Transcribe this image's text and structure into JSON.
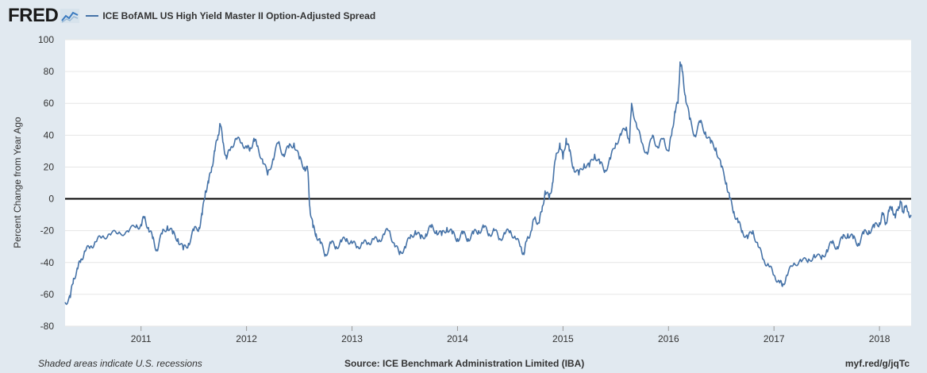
{
  "header": {
    "logo_text": "FRED",
    "logo_icon": "fred-chart-icon",
    "series_title": "ICE BofAML US High Yield Master II Option-Adjusted Spread"
  },
  "footer": {
    "recession_note": "Shaded areas indicate U.S. recessions",
    "source": "Source: ICE Benchmark Administration Limited (IBA)",
    "short_url": "myf.red/g/jqTc"
  },
  "colors": {
    "series": "#4572a7",
    "background": "#e1e9f0",
    "plot": "#ffffff",
    "zero_line": "#000000"
  },
  "chart_data": {
    "type": "line",
    "title": "",
    "xlabel": "",
    "ylabel": "Percent Change from Year Ago",
    "xlim": [
      2010.28,
      2018.3
    ],
    "ylim": [
      -80,
      100
    ],
    "yticks": [
      -80,
      -60,
      -40,
      -20,
      0,
      20,
      40,
      60,
      80,
      100
    ],
    "xticks": [
      2011,
      2012,
      2013,
      2014,
      2015,
      2016,
      2017,
      2018
    ],
    "grid": true,
    "legend": "top-left",
    "reference_line": 0,
    "series": [
      {
        "name": "ICE BofAML US High Yield Master II Option-Adjusted Spread",
        "points": [
          [
            2010.28,
            -65
          ],
          [
            2010.33,
            -62
          ],
          [
            2010.36,
            -50
          ],
          [
            2010.4,
            -44
          ],
          [
            2010.43,
            -38
          ],
          [
            2010.47,
            -33
          ],
          [
            2010.52,
            -30
          ],
          [
            2010.57,
            -27
          ],
          [
            2010.63,
            -24
          ],
          [
            2010.7,
            -22
          ],
          [
            2010.78,
            -22
          ],
          [
            2010.87,
            -20
          ],
          [
            2010.95,
            -18
          ],
          [
            2011.0,
            -16
          ],
          [
            2011.03,
            -12
          ],
          [
            2011.07,
            -18
          ],
          [
            2011.11,
            -25
          ],
          [
            2011.15,
            -32
          ],
          [
            2011.2,
            -22
          ],
          [
            2011.25,
            -17
          ],
          [
            2011.3,
            -22
          ],
          [
            2011.35,
            -25
          ],
          [
            2011.4,
            -32
          ],
          [
            2011.45,
            -28
          ],
          [
            2011.5,
            -20
          ],
          [
            2011.55,
            -18
          ],
          [
            2011.58,
            -10
          ],
          [
            2011.61,
            5
          ],
          [
            2011.64,
            10
          ],
          [
            2011.67,
            20
          ],
          [
            2011.7,
            30
          ],
          [
            2011.73,
            40
          ],
          [
            2011.75,
            47
          ],
          [
            2011.78,
            35
          ],
          [
            2011.81,
            25
          ],
          [
            2011.85,
            32
          ],
          [
            2011.9,
            38
          ],
          [
            2011.95,
            35
          ],
          [
            2012.0,
            33
          ],
          [
            2012.03,
            30
          ],
          [
            2012.07,
            38
          ],
          [
            2012.1,
            33
          ],
          [
            2012.15,
            25
          ],
          [
            2012.2,
            15
          ],
          [
            2012.25,
            25
          ],
          [
            2012.3,
            35
          ],
          [
            2012.35,
            28
          ],
          [
            2012.4,
            32
          ],
          [
            2012.45,
            35
          ],
          [
            2012.5,
            25
          ],
          [
            2012.55,
            20
          ],
          [
            2012.58,
            18
          ],
          [
            2012.6,
            -5
          ],
          [
            2012.63,
            -18
          ],
          [
            2012.66,
            -22
          ],
          [
            2012.7,
            -28
          ],
          [
            2012.75,
            -35
          ],
          [
            2012.8,
            -28
          ],
          [
            2012.85,
            -30
          ],
          [
            2012.9,
            -27
          ],
          [
            2012.95,
            -25
          ],
          [
            2013.0,
            -28
          ],
          [
            2013.05,
            -30
          ],
          [
            2013.1,
            -28
          ],
          [
            2013.15,
            -28
          ],
          [
            2013.2,
            -25
          ],
          [
            2013.25,
            -27
          ],
          [
            2013.3,
            -22
          ],
          [
            2013.35,
            -20
          ],
          [
            2013.4,
            -28
          ],
          [
            2013.45,
            -35
          ],
          [
            2013.5,
            -30
          ],
          [
            2013.55,
            -25
          ],
          [
            2013.6,
            -20
          ],
          [
            2013.65,
            -25
          ],
          [
            2013.7,
            -22
          ],
          [
            2013.75,
            -18
          ],
          [
            2013.8,
            -20
          ],
          [
            2013.85,
            -23
          ],
          [
            2013.9,
            -18
          ],
          [
            2013.95,
            -22
          ],
          [
            2014.0,
            -25
          ],
          [
            2014.05,
            -22
          ],
          [
            2014.1,
            -25
          ],
          [
            2014.15,
            -22
          ],
          [
            2014.2,
            -20
          ],
          [
            2014.25,
            -18
          ],
          [
            2014.3,
            -22
          ],
          [
            2014.35,
            -20
          ],
          [
            2014.4,
            -25
          ],
          [
            2014.45,
            -22
          ],
          [
            2014.5,
            -20
          ],
          [
            2014.55,
            -25
          ],
          [
            2014.6,
            -30
          ],
          [
            2014.63,
            -35
          ],
          [
            2014.66,
            -25
          ],
          [
            2014.7,
            -20
          ],
          [
            2014.73,
            -12
          ],
          [
            2014.77,
            -15
          ],
          [
            2014.8,
            -8
          ],
          [
            2014.83,
            5
          ],
          [
            2014.87,
            0
          ],
          [
            2014.9,
            10
          ],
          [
            2014.93,
            25
          ],
          [
            2014.97,
            35
          ],
          [
            2015.0,
            25
          ],
          [
            2015.03,
            38
          ],
          [
            2015.06,
            30
          ],
          [
            2015.1,
            20
          ],
          [
            2015.15,
            15
          ],
          [
            2015.2,
            22
          ],
          [
            2015.25,
            20
          ],
          [
            2015.3,
            28
          ],
          [
            2015.35,
            22
          ],
          [
            2015.4,
            18
          ],
          [
            2015.45,
            25
          ],
          [
            2015.5,
            35
          ],
          [
            2015.55,
            40
          ],
          [
            2015.6,
            45
          ],
          [
            2015.63,
            35
          ],
          [
            2015.65,
            60
          ],
          [
            2015.7,
            45
          ],
          [
            2015.75,
            35
          ],
          [
            2015.8,
            28
          ],
          [
            2015.85,
            40
          ],
          [
            2015.9,
            32
          ],
          [
            2015.95,
            38
          ],
          [
            2016.0,
            30
          ],
          [
            2016.03,
            40
          ],
          [
            2016.06,
            55
          ],
          [
            2016.09,
            60
          ],
          [
            2016.11,
            86
          ],
          [
            2016.13,
            80
          ],
          [
            2016.16,
            65
          ],
          [
            2016.2,
            50
          ],
          [
            2016.25,
            40
          ],
          [
            2016.3,
            48
          ],
          [
            2016.35,
            42
          ],
          [
            2016.4,
            35
          ],
          [
            2016.45,
            32
          ],
          [
            2016.5,
            20
          ],
          [
            2016.55,
            10
          ],
          [
            2016.58,
            0
          ],
          [
            2016.62,
            -8
          ],
          [
            2016.66,
            -15
          ],
          [
            2016.7,
            -20
          ],
          [
            2016.75,
            -25
          ],
          [
            2016.8,
            -20
          ],
          [
            2016.85,
            -30
          ],
          [
            2016.9,
            -38
          ],
          [
            2016.95,
            -42
          ],
          [
            2017.0,
            -48
          ],
          [
            2017.05,
            -52
          ],
          [
            2017.08,
            -55
          ],
          [
            2017.12,
            -48
          ],
          [
            2017.18,
            -42
          ],
          [
            2017.25,
            -38
          ],
          [
            2017.32,
            -40
          ],
          [
            2017.38,
            -35
          ],
          [
            2017.45,
            -38
          ],
          [
            2017.5,
            -32
          ],
          [
            2017.55,
            -28
          ],
          [
            2017.6,
            -30
          ],
          [
            2017.65,
            -25
          ],
          [
            2017.7,
            -22
          ],
          [
            2017.75,
            -25
          ],
          [
            2017.8,
            -28
          ],
          [
            2017.85,
            -22
          ],
          [
            2017.9,
            -20
          ],
          [
            2017.95,
            -18
          ],
          [
            2018.0,
            -15
          ],
          [
            2018.03,
            -10
          ],
          [
            2018.06,
            -15
          ],
          [
            2018.09,
            -8
          ],
          [
            2018.12,
            -5
          ],
          [
            2018.15,
            -12
          ],
          [
            2018.18,
            -5
          ],
          [
            2018.2,
            -2
          ],
          [
            2018.22,
            -8
          ],
          [
            2018.24,
            -5
          ],
          [
            2018.27,
            -8
          ],
          [
            2018.3,
            -11
          ]
        ]
      }
    ]
  }
}
